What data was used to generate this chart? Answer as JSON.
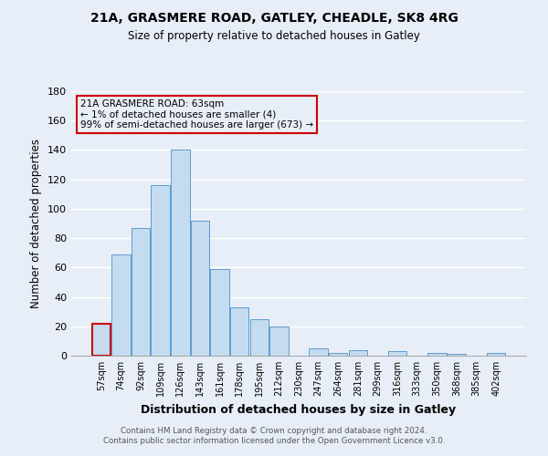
{
  "title": "21A, GRASMERE ROAD, GATLEY, CHEADLE, SK8 4RG",
  "subtitle": "Size of property relative to detached houses in Gatley",
  "xlabel": "Distribution of detached houses by size in Gatley",
  "ylabel": "Number of detached properties",
  "bar_labels": [
    "57sqm",
    "74sqm",
    "92sqm",
    "109sqm",
    "126sqm",
    "143sqm",
    "161sqm",
    "178sqm",
    "195sqm",
    "212sqm",
    "230sqm",
    "247sqm",
    "264sqm",
    "281sqm",
    "299sqm",
    "316sqm",
    "333sqm",
    "350sqm",
    "368sqm",
    "385sqm",
    "402sqm"
  ],
  "bar_values": [
    22,
    69,
    87,
    116,
    140,
    92,
    59,
    33,
    25,
    20,
    0,
    5,
    2,
    4,
    0,
    3,
    0,
    2,
    1,
    0,
    2
  ],
  "bar_color": "#c5dcf0",
  "bar_edge_color": "#5b9bd5",
  "highlight_bar_index": 0,
  "highlight_edge_color": "#cc0000",
  "ylim": [
    0,
    180
  ],
  "yticks": [
    0,
    20,
    40,
    60,
    80,
    100,
    120,
    140,
    160,
    180
  ],
  "annotation_line1": "21A GRASMERE ROAD: 63sqm",
  "annotation_line2": "← 1% of detached houses are smaller (4)",
  "annotation_line3": "99% of semi-detached houses are larger (673) →",
  "annotation_box_edge": "#cc0000",
  "footer_line1": "Contains HM Land Registry data © Crown copyright and database right 2024.",
  "footer_line2": "Contains public sector information licensed under the Open Government Licence v3.0.",
  "background_color": "#e8eef8",
  "grid_color": "#ffffff"
}
